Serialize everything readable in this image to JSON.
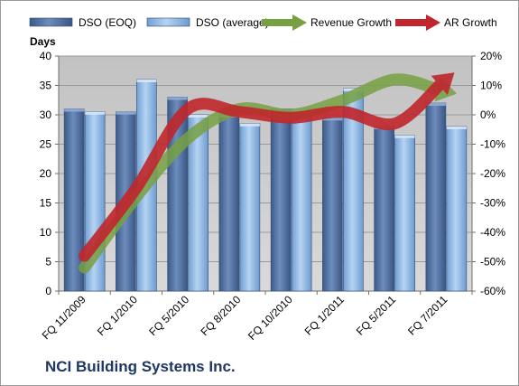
{
  "chart_data": {
    "type": "bar",
    "title": "NCI Building Systems Inc.",
    "categories": [
      "FQ 11/2009",
      "FQ 1/2010",
      "FQ 5/2010",
      "FQ 8/2010",
      "FQ 10/2010",
      "FQ 1/2011",
      "FQ 5/2011",
      "FQ 7/2011"
    ],
    "ylabel": "Days",
    "ylim": [
      0,
      40
    ],
    "yticks": [
      "0",
      "5",
      "10",
      "15",
      "20",
      "25",
      "30",
      "35",
      "40"
    ],
    "y2lim": [
      -60,
      20
    ],
    "y2ticks": [
      "-60%",
      "-50%",
      "-40%",
      "-30%",
      "-20%",
      "-10%",
      "0%",
      "10%",
      "20%"
    ],
    "grid": true,
    "legend_position": "top",
    "series": [
      {
        "name": "DSO (EOQ)",
        "type": "bar",
        "axis": "left",
        "color": "#4f6fa0",
        "values": [
          31,
          30.5,
          33,
          30,
          31,
          29.5,
          28,
          32
        ]
      },
      {
        "name": "DSO (average)",
        "type": "bar",
        "axis": "left",
        "color": "#8cb4e2",
        "values": [
          30.5,
          36,
          30,
          28.5,
          31,
          34.5,
          26.5,
          28
        ]
      },
      {
        "name": "Revenue Growth",
        "type": "line",
        "axis": "right",
        "color": "#77a043",
        "values": [
          -52,
          -28,
          -8,
          2,
          0,
          5,
          12,
          8
        ]
      },
      {
        "name": "AR Growth",
        "type": "line",
        "axis": "right",
        "color": "#c0262b",
        "values": [
          -48,
          -25,
          2,
          1,
          -1,
          1,
          -3,
          12
        ]
      }
    ]
  }
}
